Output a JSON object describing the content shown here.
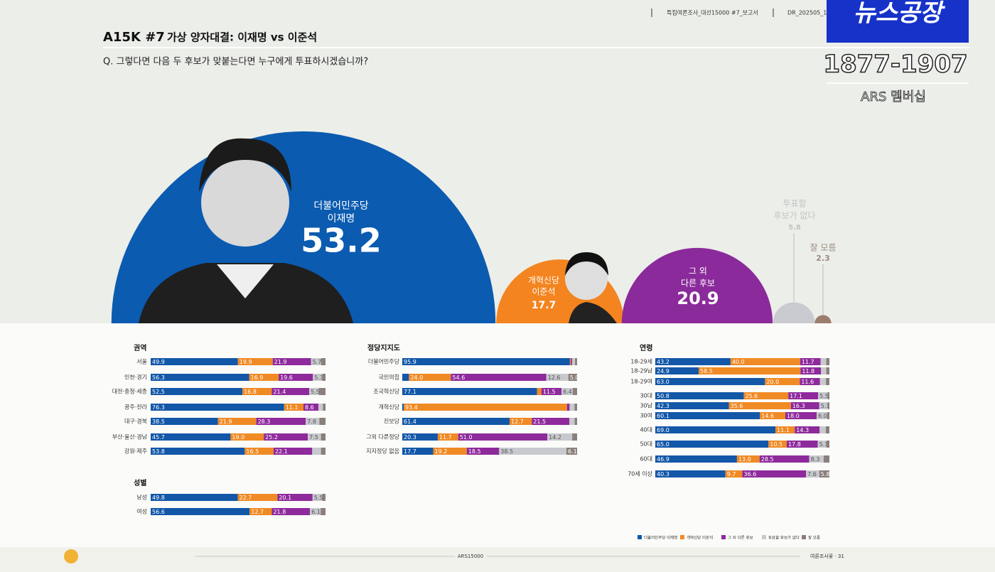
{
  "header": {
    "code": "A15K #7",
    "title": "가상 양자대결: 이재명 vs 이준석",
    "question": "Q. 그렇다면 다음 두 후보가 맞붙는다면 누구에게 투표하시겠습니까?",
    "report": "특집여론조사_대선15000 #7_보고서",
    "doc": "DR_202505_1"
  },
  "overlay": {
    "brand": "뉴스공장",
    "phone": "1877-1907",
    "sub": "ARS 멤버십"
  },
  "chart_data": [
    {
      "type": "bubble",
      "categories": [
        [
          "더불어민주당",
          "이재명"
        ],
        [
          "개혁신당",
          "이준석"
        ],
        [
          "그 외",
          "다른 후보"
        ],
        [
          "투표할",
          "후보가 없다"
        ],
        [
          "잘 모름"
        ]
      ],
      "values": [
        53.2,
        17.7,
        20.9,
        5.8,
        2.3
      ],
      "colors": [
        "#0b5bb0",
        "#f3841f",
        "#8b2a9b",
        "#c9cbd0",
        "#9c7e6e"
      ]
    },
    {
      "type": "stacked-bar",
      "xlim": [
        0,
        100
      ],
      "series": [
        {
          "name": "더불어민주당 이재명",
          "color": "#1257a8"
        },
        {
          "name": "개혁신당 이준석",
          "color": "#f08a24"
        },
        {
          "name": "그 외 다른 후보",
          "color": "#8e2a9c"
        },
        {
          "name": "투표할 후보가 없다",
          "color": "#c8c9ce"
        },
        {
          "name": "잘 모름",
          "color": "#8a7f7a"
        }
      ],
      "panels": [
        {
          "title": "권역",
          "categories": [
            "서울",
            "인천·경기",
            "대전·충청·세종",
            "광주·전라",
            "대구·경북",
            "부산·울산·경남",
            "강원·제주"
          ],
          "series": [
            {
              "values": [
                49.9,
                56.3,
                52.5,
                76.3,
                38.5,
                45.7,
                53.8
              ],
              "value_labels": [
                "49.9",
                "56.3",
                "52.5",
                "76.3",
                "38.5",
                "45.7",
                "53.8"
              ]
            },
            {
              "values": [
                19.9,
                16.9,
                16.8,
                11.1,
                21.9,
                19.0,
                16.5
              ],
              "value_labels": [
                "19.9",
                "16.9",
                "16.8",
                "11.1",
                "21.9",
                "19.0",
                "16.5"
              ]
            },
            {
              "values": [
                21.9,
                19.6,
                21.4,
                8.6,
                28.3,
                25.2,
                22.1
              ],
              "value_labels": [
                "21.9",
                "19.6",
                "21.4",
                "8.6",
                "28.3",
                "25.2",
                "22.1"
              ]
            },
            {
              "values": [
                5.7,
                5.3,
                5.5,
                2.5,
                7.8,
                7.5,
                5.0
              ],
              "value_labels": [
                "5.7",
                "5.3",
                "5.5",
                null,
                "7.8",
                "7.5",
                null
              ]
            },
            {
              "values": [
                2.6,
                1.9,
                3.8,
                1.5,
                3.5,
                2.6,
                2.6
              ],
              "value_labels": [
                null,
                null,
                null,
                null,
                null,
                null,
                null
              ]
            }
          ]
        },
        {
          "title": "성별",
          "categories": [
            "남성",
            "여성"
          ],
          "series": [
            {
              "values": [
                49.8,
                56.6
              ],
              "value_labels": [
                "49.8",
                "56.6"
              ]
            },
            {
              "values": [
                22.7,
                12.7
              ],
              "value_labels": [
                "22.7",
                "12.7"
              ]
            },
            {
              "values": [
                20.1,
                21.8
              ],
              "value_labels": [
                "20.1",
                "21.8"
              ]
            },
            {
              "values": [
                5.5,
                6.1
              ],
              "value_labels": [
                "5.5",
                "6.1"
              ]
            },
            {
              "values": [
                1.9,
                2.8
              ],
              "value_labels": [
                null,
                null
              ]
            }
          ]
        },
        {
          "title": "정당지지도",
          "categories": [
            "더불어민주당",
            "국민의힘",
            "조국혁신당",
            "개혁신당",
            "진보당",
            "그외 다른정당",
            "지지정당 없음"
          ],
          "series": [
            {
              "values": [
                95.9,
                3.8,
                77.1,
                0.8,
                61.4,
                20.3,
                17.7
              ],
              "value_labels": [
                "95.9",
                null,
                "77.1",
                null,
                "61.4",
                "20.3",
                "17.7"
              ]
            },
            {
              "values": [
                0.6,
                24.0,
                2.5,
                93.4,
                12.7,
                11.7,
                19.2
              ],
              "value_labels": [
                null,
                "24.0",
                null,
                "93.4",
                "12.7",
                "11.7",
                "19.2"
              ]
            },
            {
              "values": [
                0.7,
                54.6,
                11.5,
                1.5,
                21.5,
                51.0,
                18.5
              ],
              "value_labels": [
                null,
                "54.6",
                "11.5",
                null,
                "21.5",
                "51.0",
                "18.5"
              ]
            },
            {
              "values": [
                1.6,
                12.6,
                6.4,
                2.8,
                3.0,
                14.2,
                38.5
              ],
              "value_labels": [
                null,
                "12.6",
                "6.4",
                null,
                null,
                "14.2",
                "38.5"
              ]
            },
            {
              "values": [
                1.2,
                5.0,
                2.5,
                1.5,
                1.4,
                2.8,
                6.1
              ],
              "value_labels": [
                null,
                "5.0",
                null,
                null,
                null,
                null,
                "6.1"
              ]
            }
          ]
        },
        {
          "title": "연령",
          "categories": [
            "18-29세",
            "18-29남",
            "18-29여",
            "30대",
            "30남",
            "30여",
            "40대",
            "50대",
            "60대",
            "70세 이상"
          ],
          "series": [
            {
              "values": [
                43.2,
                24.9,
                63.0,
                50.8,
                42.3,
                60.1,
                69.0,
                65.0,
                46.9,
                40.3
              ],
              "value_labels": [
                "43.2",
                "24.9",
                "63.0",
                "50.8",
                "42.3",
                "60.1",
                "69.0",
                "65.0",
                "46.9",
                "40.3"
              ]
            },
            {
              "values": [
                40.0,
                58.5,
                20.0,
                25.6,
                35.6,
                14.6,
                11.1,
                10.5,
                13.0,
                9.7
              ],
              "value_labels": [
                "40.0",
                "58.5",
                "20.0",
                "25.6",
                "35.6",
                "14.6",
                "11.1",
                "10.5",
                "13.0",
                "9.7"
              ]
            },
            {
              "values": [
                11.7,
                11.8,
                11.6,
                17.1,
                16.3,
                18.0,
                14.3,
                17.8,
                28.5,
                36.6
              ],
              "value_labels": [
                "11.7",
                "11.8",
                "11.6",
                "17.1",
                "16.3",
                "18.0",
                "14.3",
                "17.8",
                "28.5",
                "36.6"
              ]
            },
            {
              "values": [
                3.3,
                3.0,
                3.4,
                5.5,
                5.1,
                6.0,
                3.5,
                5.1,
                8.3,
                7.6
              ],
              "value_labels": [
                null,
                null,
                null,
                "5.5",
                "5.1",
                "6.0",
                null,
                "5.1",
                "8.3",
                "7.6"
              ]
            },
            {
              "values": [
                1.8,
                1.8,
                2.0,
                1.0,
                0.7,
                1.3,
                2.1,
                1.6,
                3.3,
                5.8
              ],
              "value_labels": [
                null,
                null,
                null,
                null,
                null,
                null,
                null,
                null,
                null,
                "5.8"
              ]
            }
          ]
        }
      ]
    }
  ],
  "footer": {
    "center": "ARS15000",
    "right": "여론조사꽃 · 31"
  }
}
